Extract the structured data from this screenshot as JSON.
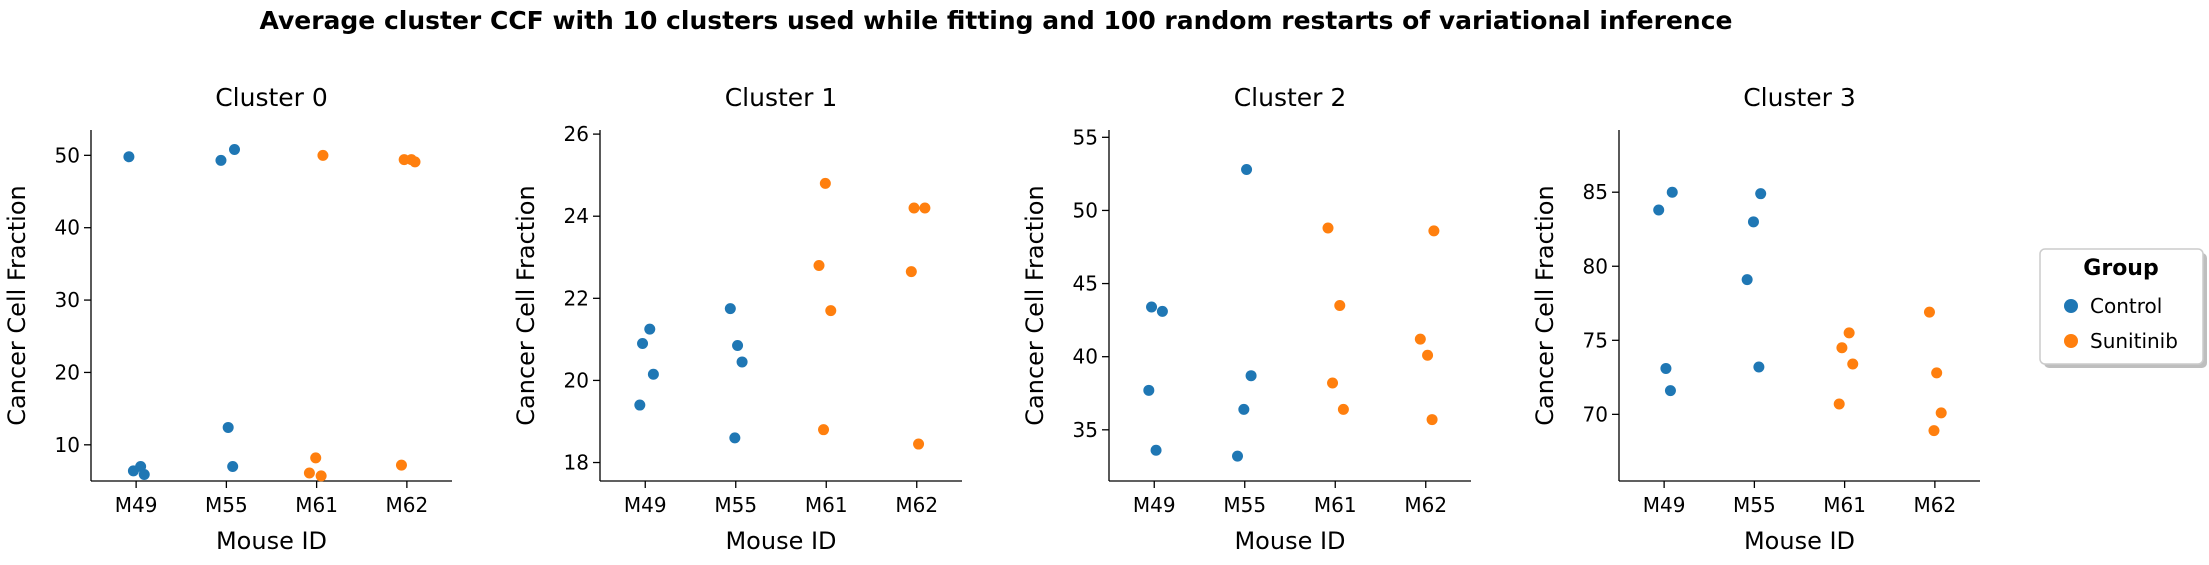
{
  "figure": {
    "title": "Average cluster CCF with 10 clusters used while fitting and 100 random restarts of variational inference"
  },
  "legend": {
    "title": "Group",
    "entries": [
      {
        "label": "Control",
        "color": "#1f77b4"
      },
      {
        "label": "Sunitinib",
        "color": "#ff7f0e"
      }
    ],
    "placement": "right"
  },
  "chart_data": [
    {
      "type": "scatter",
      "title": "Cluster 0",
      "xlabel": "Mouse ID",
      "ylabel": "Cancer Cell Fraction",
      "categories": [
        "M49",
        "M55",
        "M61",
        "M62"
      ],
      "ylim": [
        5,
        53.5
      ],
      "yticks": [
        10,
        20,
        30,
        40,
        50
      ],
      "series": [
        {
          "name": "Control",
          "points": [
            {
              "x": "M49",
              "y": 49.8
            },
            {
              "x": "M49",
              "y": 7.0
            },
            {
              "x": "M49",
              "y": 6.4
            },
            {
              "x": "M49",
              "y": 5.9
            },
            {
              "x": "M55",
              "y": 50.8
            },
            {
              "x": "M55",
              "y": 49.3
            },
            {
              "x": "M55",
              "y": 12.4
            },
            {
              "x": "M55",
              "y": 7.0
            }
          ]
        },
        {
          "name": "Sunitinib",
          "points": [
            {
              "x": "M61",
              "y": 50.0
            },
            {
              "x": "M61",
              "y": 8.2
            },
            {
              "x": "M61",
              "y": 6.1
            },
            {
              "x": "M61",
              "y": 5.7
            },
            {
              "x": "M62",
              "y": 49.4
            },
            {
              "x": "M62",
              "y": 49.4
            },
            {
              "x": "M62",
              "y": 49.1
            },
            {
              "x": "M62",
              "y": 7.2
            }
          ]
        }
      ]
    },
    {
      "type": "scatter",
      "title": "Cluster 1",
      "xlabel": "Mouse ID",
      "ylabel": "Cancer Cell Fraction",
      "categories": [
        "M49",
        "M55",
        "M61",
        "M62"
      ],
      "ylim": [
        17.55,
        26.1
      ],
      "yticks": [
        18,
        20,
        22,
        24,
        26
      ],
      "series": [
        {
          "name": "Control",
          "points": [
            {
              "x": "M49",
              "y": 21.25
            },
            {
              "x": "M49",
              "y": 20.9
            },
            {
              "x": "M49",
              "y": 20.15
            },
            {
              "x": "M49",
              "y": 19.4
            },
            {
              "x": "M55",
              "y": 21.75
            },
            {
              "x": "M55",
              "y": 20.85
            },
            {
              "x": "M55",
              "y": 20.45
            },
            {
              "x": "M55",
              "y": 18.6
            }
          ]
        },
        {
          "name": "Sunitinib",
          "points": [
            {
              "x": "M61",
              "y": 24.8
            },
            {
              "x": "M61",
              "y": 22.8
            },
            {
              "x": "M61",
              "y": 21.7
            },
            {
              "x": "M61",
              "y": 18.8
            },
            {
              "x": "M62",
              "y": 24.2
            },
            {
              "x": "M62",
              "y": 24.2
            },
            {
              "x": "M62",
              "y": 22.65
            },
            {
              "x": "M62",
              "y": 18.45
            }
          ]
        }
      ]
    },
    {
      "type": "scatter",
      "title": "Cluster 2",
      "xlabel": "Mouse ID",
      "ylabel": "Cancer Cell Fraction",
      "categories": [
        "M49",
        "M55",
        "M61",
        "M62"
      ],
      "ylim": [
        31.5,
        55.5
      ],
      "yticks": [
        35,
        40,
        45,
        50,
        55
      ],
      "series": [
        {
          "name": "Control",
          "points": [
            {
              "x": "M49",
              "y": 43.4
            },
            {
              "x": "M49",
              "y": 43.1
            },
            {
              "x": "M49",
              "y": 37.7
            },
            {
              "x": "M49",
              "y": 33.6
            },
            {
              "x": "M55",
              "y": 52.8
            },
            {
              "x": "M55",
              "y": 38.7
            },
            {
              "x": "M55",
              "y": 36.4
            },
            {
              "x": "M55",
              "y": 33.2
            }
          ]
        },
        {
          "name": "Sunitinib",
          "points": [
            {
              "x": "M61",
              "y": 48.8
            },
            {
              "x": "M61",
              "y": 43.5
            },
            {
              "x": "M61",
              "y": 38.2
            },
            {
              "x": "M61",
              "y": 36.4
            },
            {
              "x": "M62",
              "y": 48.6
            },
            {
              "x": "M62",
              "y": 41.2
            },
            {
              "x": "M62",
              "y": 40.1
            },
            {
              "x": "M62",
              "y": 35.7
            }
          ]
        }
      ]
    },
    {
      "type": "scatter",
      "title": "Cluster 3",
      "xlabel": "Mouse ID",
      "ylabel": "Cancer Cell Fraction",
      "categories": [
        "M49",
        "M55",
        "M61",
        "M62"
      ],
      "ylim": [
        65.5,
        89.2
      ],
      "yticks": [
        70,
        75,
        80,
        85
      ],
      "series": [
        {
          "name": "Control",
          "points": [
            {
              "x": "M49",
              "y": 85.0
            },
            {
              "x": "M49",
              "y": 83.8
            },
            {
              "x": "M49",
              "y": 73.1
            },
            {
              "x": "M49",
              "y": 71.6
            },
            {
              "x": "M55",
              "y": 84.9
            },
            {
              "x": "M55",
              "y": 83.0
            },
            {
              "x": "M55",
              "y": 79.1
            },
            {
              "x": "M55",
              "y": 73.2
            }
          ]
        },
        {
          "name": "Sunitinib",
          "points": [
            {
              "x": "M61",
              "y": 75.5
            },
            {
              "x": "M61",
              "y": 74.5
            },
            {
              "x": "M61",
              "y": 73.4
            },
            {
              "x": "M61",
              "y": 70.7
            },
            {
              "x": "M62",
              "y": 76.9
            },
            {
              "x": "M62",
              "y": 72.8
            },
            {
              "x": "M62",
              "y": 70.1
            },
            {
              "x": "M62",
              "y": 68.9
            }
          ]
        }
      ]
    }
  ]
}
